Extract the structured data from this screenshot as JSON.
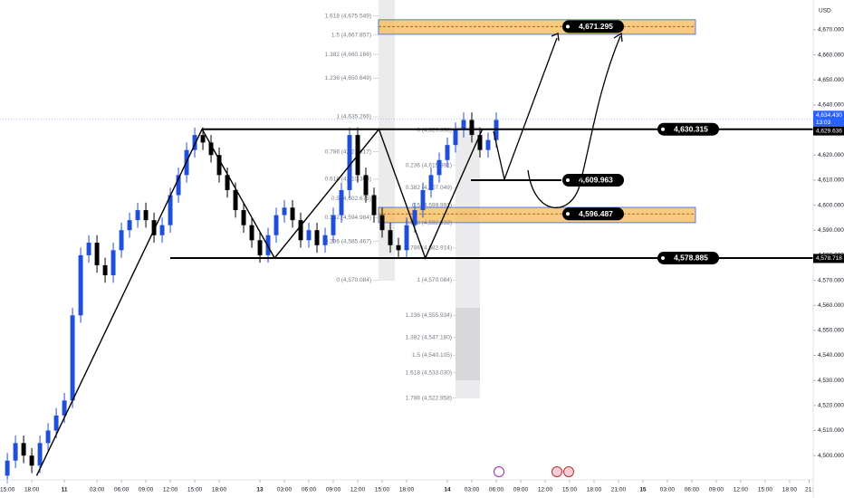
{
  "chart_data": {
    "type": "candlestick",
    "currency": "USD",
    "xlim": [
      -0.9,
      98.9
    ],
    "ylim": [
      4490.3,
      4681.9
    ],
    "up_color": "#1f4fd8",
    "down_color": "#000000",
    "xticks": [
      {
        "value": 0,
        "label": "15:00"
      },
      {
        "value": 3,
        "label": "18:00"
      },
      {
        "value": 7,
        "label": "11"
      },
      {
        "value": 11,
        "label": "03:00"
      },
      {
        "value": 14,
        "label": "06:00"
      },
      {
        "value": 17,
        "label": "09:00"
      },
      {
        "value": 20,
        "label": "12:00"
      },
      {
        "value": 23,
        "label": "15:00"
      },
      {
        "value": 26,
        "label": "18:00"
      },
      {
        "value": 31,
        "label": "13"
      },
      {
        "value": 34,
        "label": "03:00"
      },
      {
        "value": 37,
        "label": "06:00"
      },
      {
        "value": 40,
        "label": "09:00"
      },
      {
        "value": 43,
        "label": "12:00"
      },
      {
        "value": 46,
        "label": "15:00"
      },
      {
        "value": 49,
        "label": "18:00"
      },
      {
        "value": 54,
        "label": "14"
      },
      {
        "value": 57,
        "label": "03:00"
      },
      {
        "value": 60,
        "label": "06:00"
      },
      {
        "value": 63,
        "label": "09:00"
      },
      {
        "value": 66,
        "label": "12:00"
      },
      {
        "value": 69,
        "label": "15:00"
      },
      {
        "value": 72,
        "label": "18:00"
      },
      {
        "value": 75,
        "label": "21:00"
      },
      {
        "value": 78,
        "label": "15"
      },
      {
        "value": 81,
        "label": "03:00"
      },
      {
        "value": 84,
        "label": "06:00"
      },
      {
        "value": 87,
        "label": "09:00"
      },
      {
        "value": 90,
        "label": "12:00"
      },
      {
        "value": 93,
        "label": "15:00"
      },
      {
        "value": 96,
        "label": "18:00"
      },
      {
        "value": 98.4,
        "label": "21:"
      }
    ],
    "yticks": [
      {
        "value": 4500,
        "label": "4,500.000"
      },
      {
        "value": 4510,
        "label": "4,510.000"
      },
      {
        "value": 4520,
        "label": "4,520.000"
      },
      {
        "value": 4530,
        "label": "4,530.000"
      },
      {
        "value": 4540,
        "label": "4,540.000"
      },
      {
        "value": 4550,
        "label": "4,550.000"
      },
      {
        "value": 4560,
        "label": "4,560.000"
      },
      {
        "value": 4570,
        "label": "4,570.000"
      },
      {
        "value": 4580,
        "label": "4,580.000"
      },
      {
        "value": 4590,
        "label": "4,590.000"
      },
      {
        "value": 4600,
        "label": "4,600.000"
      },
      {
        "value": 4610,
        "label": "4,610.000"
      },
      {
        "value": 4620,
        "label": "4,620.000"
      },
      {
        "value": 4630,
        "label": "4,630.000"
      },
      {
        "value": 4640,
        "label": "4,640.000"
      },
      {
        "value": 4650,
        "label": "4,650.000"
      },
      {
        "value": 4660,
        "label": "4,660.000"
      },
      {
        "value": 4670,
        "label": "4,670.000"
      }
    ],
    "x": [
      0,
      1,
      2,
      3,
      4,
      5,
      6,
      7,
      8,
      9,
      10,
      11,
      12,
      13,
      14,
      15,
      16,
      17,
      18,
      19,
      20,
      21,
      22,
      23,
      24,
      25,
      26,
      27,
      28,
      29,
      30,
      31,
      32,
      33,
      34,
      35,
      36,
      37,
      38,
      39,
      40,
      41,
      42,
      43,
      44,
      45,
      46,
      47,
      48,
      49,
      50,
      51,
      52,
      53,
      54,
      55,
      56,
      57,
      58,
      59,
      60
    ],
    "open": [
      4492,
      4498,
      4505,
      4500,
      4496,
      4505,
      4510,
      4516,
      4522,
      4556,
      4580,
      4585,
      4576,
      4572,
      4582,
      4590,
      4594,
      4598,
      4594,
      4588,
      4592,
      4604,
      4612,
      4622,
      4628,
      4625,
      4620,
      4612,
      4606,
      4598,
      4592,
      4586,
      4580,
      4588,
      4596,
      4599,
      4594,
      4586,
      4590,
      4584,
      4588,
      4596,
      4606,
      4628,
      4612,
      4604,
      4596,
      4590,
      4584,
      4582,
      4592,
      4598,
      4606,
      4612,
      4618,
      4624,
      4630,
      4634,
      4628,
      4622,
      4626
    ],
    "high": [
      4501,
      4508,
      4508,
      4503,
      4508,
      4513,
      4519,
      4525,
      4559,
      4583,
      4588,
      4588,
      4579,
      4585,
      4593,
      4597,
      4601,
      4601,
      4597,
      4595,
      4607,
      4615,
      4625,
      4631,
      4631,
      4628,
      4623,
      4615,
      4609,
      4601,
      4595,
      4589,
      4591,
      4599,
      4602,
      4602,
      4597,
      4593,
      4593,
      4591,
      4599,
      4609,
      4631,
      4631,
      4615,
      4607,
      4599,
      4593,
      4587,
      4595,
      4601,
      4609,
      4615,
      4621,
      4627,
      4633,
      4637,
      4637,
      4631,
      4629,
      4637
    ],
    "low": [
      4489,
      4495,
      4497,
      4493,
      4493,
      4502,
      4507,
      4513,
      4519,
      4553,
      4577,
      4573,
      4569,
      4569,
      4579,
      4587,
      4591,
      4591,
      4585,
      4585,
      4589,
      4601,
      4609,
      4619,
      4622,
      4617,
      4609,
      4603,
      4595,
      4589,
      4583,
      4577,
      4577,
      4585,
      4593,
      4591,
      4583,
      4583,
      4581,
      4581,
      4585,
      4593,
      4603,
      4609,
      4601,
      4593,
      4587,
      4581,
      4579,
      4579,
      4589,
      4595,
      4603,
      4609,
      4615,
      4621,
      4627,
      4625,
      4619,
      4619,
      4623
    ],
    "close": [
      4498,
      4505,
      4500,
      4496,
      4505,
      4510,
      4516,
      4522,
      4556,
      4580,
      4585,
      4576,
      4572,
      4582,
      4590,
      4594,
      4598,
      4594,
      4588,
      4592,
      4604,
      4612,
      4622,
      4628,
      4625,
      4620,
      4612,
      4606,
      4598,
      4592,
      4586,
      4580,
      4588,
      4596,
      4599,
      4594,
      4586,
      4590,
      4584,
      4588,
      4596,
      4606,
      4628,
      4612,
      4604,
      4596,
      4590,
      4584,
      4582,
      4592,
      4598,
      4606,
      4612,
      4618,
      4624,
      4630,
      4634,
      4628,
      4622,
      4626,
      4634
    ],
    "pattern": {
      "x": [
        3.6,
        23.9,
        32.8,
        45.6,
        51.3,
        58.3
      ],
      "values": [
        4492,
        4630.315,
        4578.885,
        4630.315,
        4578.885,
        4630.315
      ]
    },
    "levels": [
      {
        "value": 4630.315,
        "label": "4,630.315"
      },
      {
        "value": 4609.963,
        "label": "4,609.963"
      },
      {
        "value": 4578.885,
        "label": "4,578.885"
      }
    ],
    "zones": [
      {
        "value": 4671.295,
        "label": "4,671.295",
        "low": 4668.2,
        "high": 4674.0
      },
      {
        "value": 4596.487,
        "label": "4,596.487",
        "low": 4593.0,
        "high": 4599.1
      }
    ],
    "fib_a": [
      {
        "value": 4675.549,
        "label": "1.618 (4,675.549)"
      },
      {
        "value": 4667.857,
        "label": "1.5 (4,667.857)"
      },
      {
        "value": 4660.166,
        "label": "1.382 (4,660.166)"
      },
      {
        "value": 4650.649,
        "label": "1.236 (4,650.649)"
      },
      {
        "value": 4635.266,
        "label": "1 (4,635.266)"
      },
      {
        "value": 4621.317,
        "label": "0.786 (4,621.317)"
      },
      {
        "value": 4610.366,
        "label": "0.618 (4,610.366)"
      },
      {
        "value": 4602.675,
        "label": "0.5 (4,602.675)"
      },
      {
        "value": 4594.984,
        "label": "0.382 (4,594.984)"
      },
      {
        "value": 4585.467,
        "label": "0.236 (4,585.467)"
      },
      {
        "value": 4570.084,
        "label": "0 (4,570.084)"
      }
    ],
    "fib_b": [
      {
        "value": 4629.898,
        "label": "0 (4,629.898)"
      },
      {
        "value": 4615.891,
        "label": "0.236 (4,615.891)"
      },
      {
        "value": 4607.049,
        "label": "0.382 (4,607.049)"
      },
      {
        "value": 4599.991,
        "label": "0.5 (4,599.991)"
      },
      {
        "value": 4592.932,
        "label": "0.618 (4,592.932)"
      },
      {
        "value": 4582.914,
        "label": "0.786 (4,582.914)"
      },
      {
        "value": 4570.084,
        "label": "1 (4,570.084)"
      },
      {
        "value": 4555.934,
        "label": "1.236 (4,555.934)"
      },
      {
        "value": 4547.18,
        "label": "1.382 (4,547.180)"
      },
      {
        "value": 4540.105,
        "label": "1.5 (4,540.105)"
      },
      {
        "value": 4533.03,
        "label": "1.618 (4,533.030)"
      },
      {
        "value": 4522.958,
        "label": "1.786 (4,522.958)"
      }
    ],
    "last_price": {
      "value": 4634.43,
      "label": "4,634.430",
      "time": "13:03"
    },
    "axis_tags": [
      {
        "value": 4629.636,
        "label": "4,629.636"
      },
      {
        "value": 4578.718,
        "label": "4,578.718"
      }
    ]
  }
}
